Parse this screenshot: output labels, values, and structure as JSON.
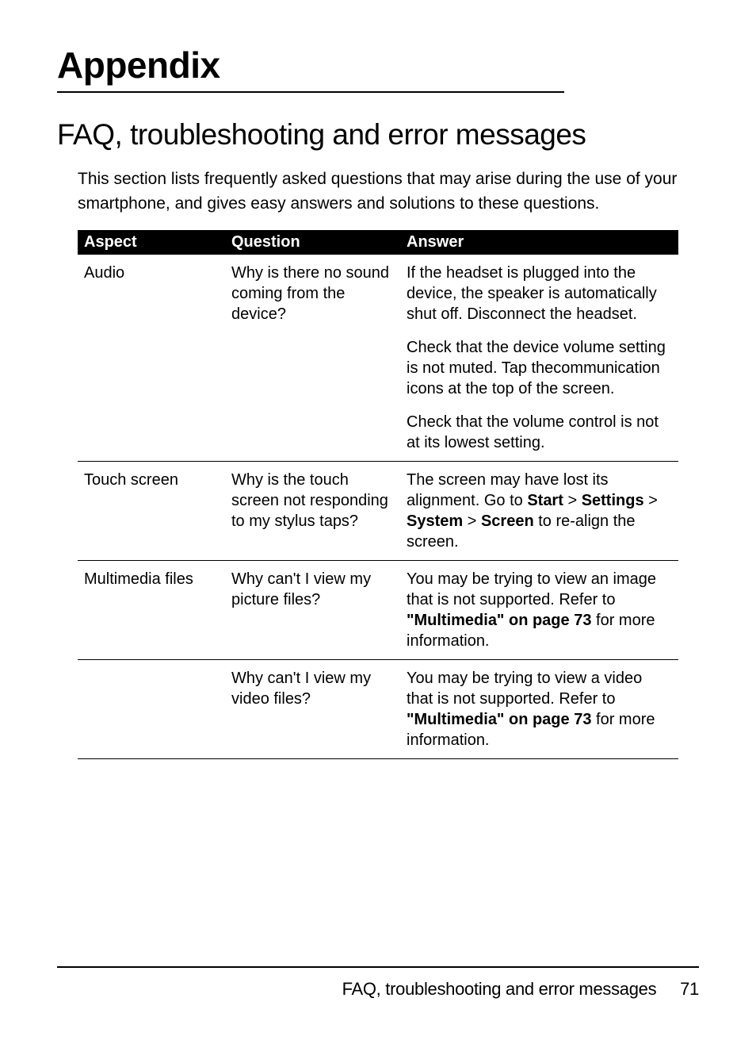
{
  "page": {
    "h1": "Appendix",
    "h2": "FAQ, troubleshooting and error messages",
    "intro": "This section lists frequently asked questions that may arise during the use of your smartphone, and gives easy answers and solutions to these questions."
  },
  "table": {
    "headers": {
      "aspect": "Aspect",
      "question": "Question",
      "answer": "Answer"
    },
    "rows": [
      {
        "aspect": "Audio",
        "question": "Why is there no sound coming from the device?",
        "answers": [
          {
            "segments": [
              {
                "t": "If the headset is plugged into the device, the speaker is automatically shut off. Disconnect the headset."
              }
            ]
          },
          {
            "segments": [
              {
                "t": "Check that the device volume setting is not muted. Tap thecommunication icons at the top of the screen."
              }
            ]
          },
          {
            "segments": [
              {
                "t": "Check that the volume control is not at its lowest setting."
              }
            ]
          }
        ]
      },
      {
        "aspect": "Touch screen",
        "question": "Why is the touch screen not responding to my stylus taps?",
        "answers": [
          {
            "segments": [
              {
                "t": "The screen may have lost its alignment. Go to "
              },
              {
                "t": "Start",
                "b": true
              },
              {
                "t": " > "
              },
              {
                "t": "Settings",
                "b": true
              },
              {
                "t": " > "
              },
              {
                "t": "System",
                "b": true
              },
              {
                "t": " > "
              },
              {
                "t": "Screen",
                "b": true
              },
              {
                "t": " to re-align the screen."
              }
            ]
          }
        ]
      },
      {
        "aspect": "Multimedia files",
        "question": "Why can't I view my picture files?",
        "answers": [
          {
            "segments": [
              {
                "t": "You may be trying to view an image that is not supported. Refer to "
              },
              {
                "t": "\"Multimedia\" on page 73",
                "b": true
              },
              {
                "t": " for more information."
              }
            ]
          }
        ]
      },
      {
        "aspect": "",
        "question": "Why can't I view my video files?",
        "answers": [
          {
            "segments": [
              {
                "t": "You may be trying to view a video that is not supported. Refer to "
              },
              {
                "t": "\"Multimedia\" on page 73",
                "b": true
              },
              {
                "t": " for more information."
              }
            ]
          }
        ]
      }
    ]
  },
  "footer": {
    "title": "FAQ, troubleshooting and error messages",
    "page_num": "71"
  }
}
